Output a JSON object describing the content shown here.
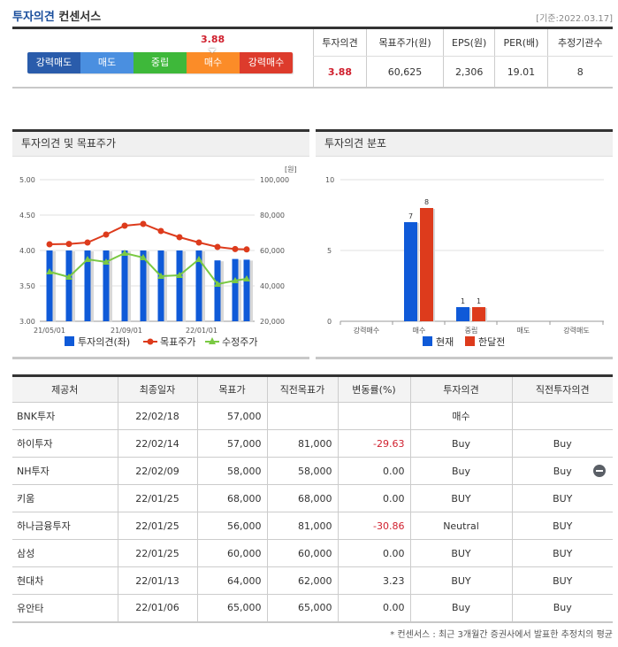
{
  "header": {
    "title_part1": "투자의견",
    "title_part2": "컨센서스",
    "base_date": "[기준:2022.03.17]"
  },
  "scale": {
    "score": "3.88",
    "segments": [
      {
        "label": "강력매도",
        "color": "#2a5cab"
      },
      {
        "label": "매도",
        "color": "#4a8fe0"
      },
      {
        "label": "중립",
        "color": "#3eb83a"
      },
      {
        "label": "매수",
        "color": "#fb8c28"
      },
      {
        "label": "강력매수",
        "color": "#dd3b2c"
      }
    ]
  },
  "summary": {
    "headers": [
      "투자의견",
      "목표주가(원)",
      "EPS(원)",
      "PER(배)",
      "추정기관수"
    ],
    "values": [
      "3.88",
      "60,625",
      "2,306",
      "19.01",
      "8"
    ]
  },
  "panels": {
    "left_title": "투자의견 및 목표주가",
    "right_title": "투자의견 분포"
  },
  "chart_data": [
    {
      "type": "bar+line",
      "title": "투자의견 및 목표주가",
      "x_tick_labels": [
        "21/05/01",
        "21/09/01",
        "22/01/01"
      ],
      "left_axis": {
        "ticks": [
          "3.00",
          "3.50",
          "4.00",
          "4.50",
          "5.00"
        ],
        "range": [
          3.0,
          5.0
        ]
      },
      "right_axis": {
        "unit": "[원]",
        "ticks": [
          "20,000",
          "40,000",
          "60,000",
          "80,000",
          "100,000"
        ],
        "range": [
          20000,
          100000
        ]
      },
      "legend": [
        "투자의견(좌)",
        "목표주가",
        "수정주가"
      ],
      "series": [
        {
          "name": "투자의견(좌)",
          "type": "bar",
          "axis": "left",
          "color": "#0f5ad8",
          "values": [
            4.0,
            4.0,
            4.0,
            4.0,
            4.0,
            4.0,
            4.0,
            4.0,
            4.0,
            3.86,
            3.88,
            3.87
          ]
        },
        {
          "name": "목표주가",
          "type": "line",
          "axis": "right",
          "color": "#dd3b1c",
          "values": [
            63500,
            63700,
            64500,
            69000,
            74000,
            75000,
            71000,
            67500,
            64500,
            62000,
            60800,
            60600
          ]
        },
        {
          "name": "수정주가",
          "type": "line",
          "axis": "right",
          "color": "#7ac943",
          "values": [
            48000,
            45000,
            55000,
            53500,
            58500,
            56000,
            45500,
            46000,
            55000,
            41000,
            43000,
            44000
          ]
        }
      ]
    },
    {
      "type": "bar",
      "title": "투자의견 분포",
      "categories": [
        "강력매수",
        "매수",
        "중립",
        "매도",
        "강력매도"
      ],
      "ylim": [
        0,
        10
      ],
      "y_ticks": [
        "0",
        "5",
        "10"
      ],
      "legend": [
        "현재",
        "한달전"
      ],
      "series": [
        {
          "name": "현재",
          "color": "#0f5ad8",
          "values": [
            0,
            7,
            1,
            0,
            0
          ]
        },
        {
          "name": "한달전",
          "color": "#dd3b1c",
          "values": [
            0,
            8,
            1,
            0,
            0
          ]
        }
      ]
    }
  ],
  "table": {
    "headers": [
      "제공처",
      "최종일자",
      "목표가",
      "직전목표가",
      "변동률(%)",
      "투자의견",
      "직전투자의견"
    ],
    "rows": [
      {
        "provider": "BNK투자",
        "date": "22/02/18",
        "target": "57,000",
        "prev_target": "",
        "change": "",
        "opinion": "매수",
        "prev_opinion": ""
      },
      {
        "provider": "하이투자",
        "date": "22/02/14",
        "target": "57,000",
        "prev_target": "81,000",
        "change": "-29.63",
        "opinion": "Buy",
        "prev_opinion": "Buy"
      },
      {
        "provider": "NH투자",
        "date": "22/02/09",
        "target": "58,000",
        "prev_target": "58,000",
        "change": "0.00",
        "opinion": "Buy",
        "prev_opinion": "Buy"
      },
      {
        "provider": "키움",
        "date": "22/01/25",
        "target": "68,000",
        "prev_target": "68,000",
        "change": "0.00",
        "opinion": "BUY",
        "prev_opinion": "BUY"
      },
      {
        "provider": "하나금융투자",
        "date": "22/01/25",
        "target": "56,000",
        "prev_target": "81,000",
        "change": "-30.86",
        "opinion": "Neutral",
        "prev_opinion": "BUY"
      },
      {
        "provider": "삼성",
        "date": "22/01/25",
        "target": "60,000",
        "prev_target": "60,000",
        "change": "0.00",
        "opinion": "BUY",
        "prev_opinion": "BUY"
      },
      {
        "provider": "현대차",
        "date": "22/01/13",
        "target": "64,000",
        "prev_target": "62,000",
        "change": "3.23",
        "opinion": "BUY",
        "prev_opinion": "BUY"
      },
      {
        "provider": "유안타",
        "date": "22/01/06",
        "target": "65,000",
        "prev_target": "65,000",
        "change": "0.00",
        "opinion": "Buy",
        "prev_opinion": "Buy"
      }
    ]
  },
  "footnote": "* 컨센서스 : 최근 3개월간 증권사에서 발표한 추정치의 평균"
}
